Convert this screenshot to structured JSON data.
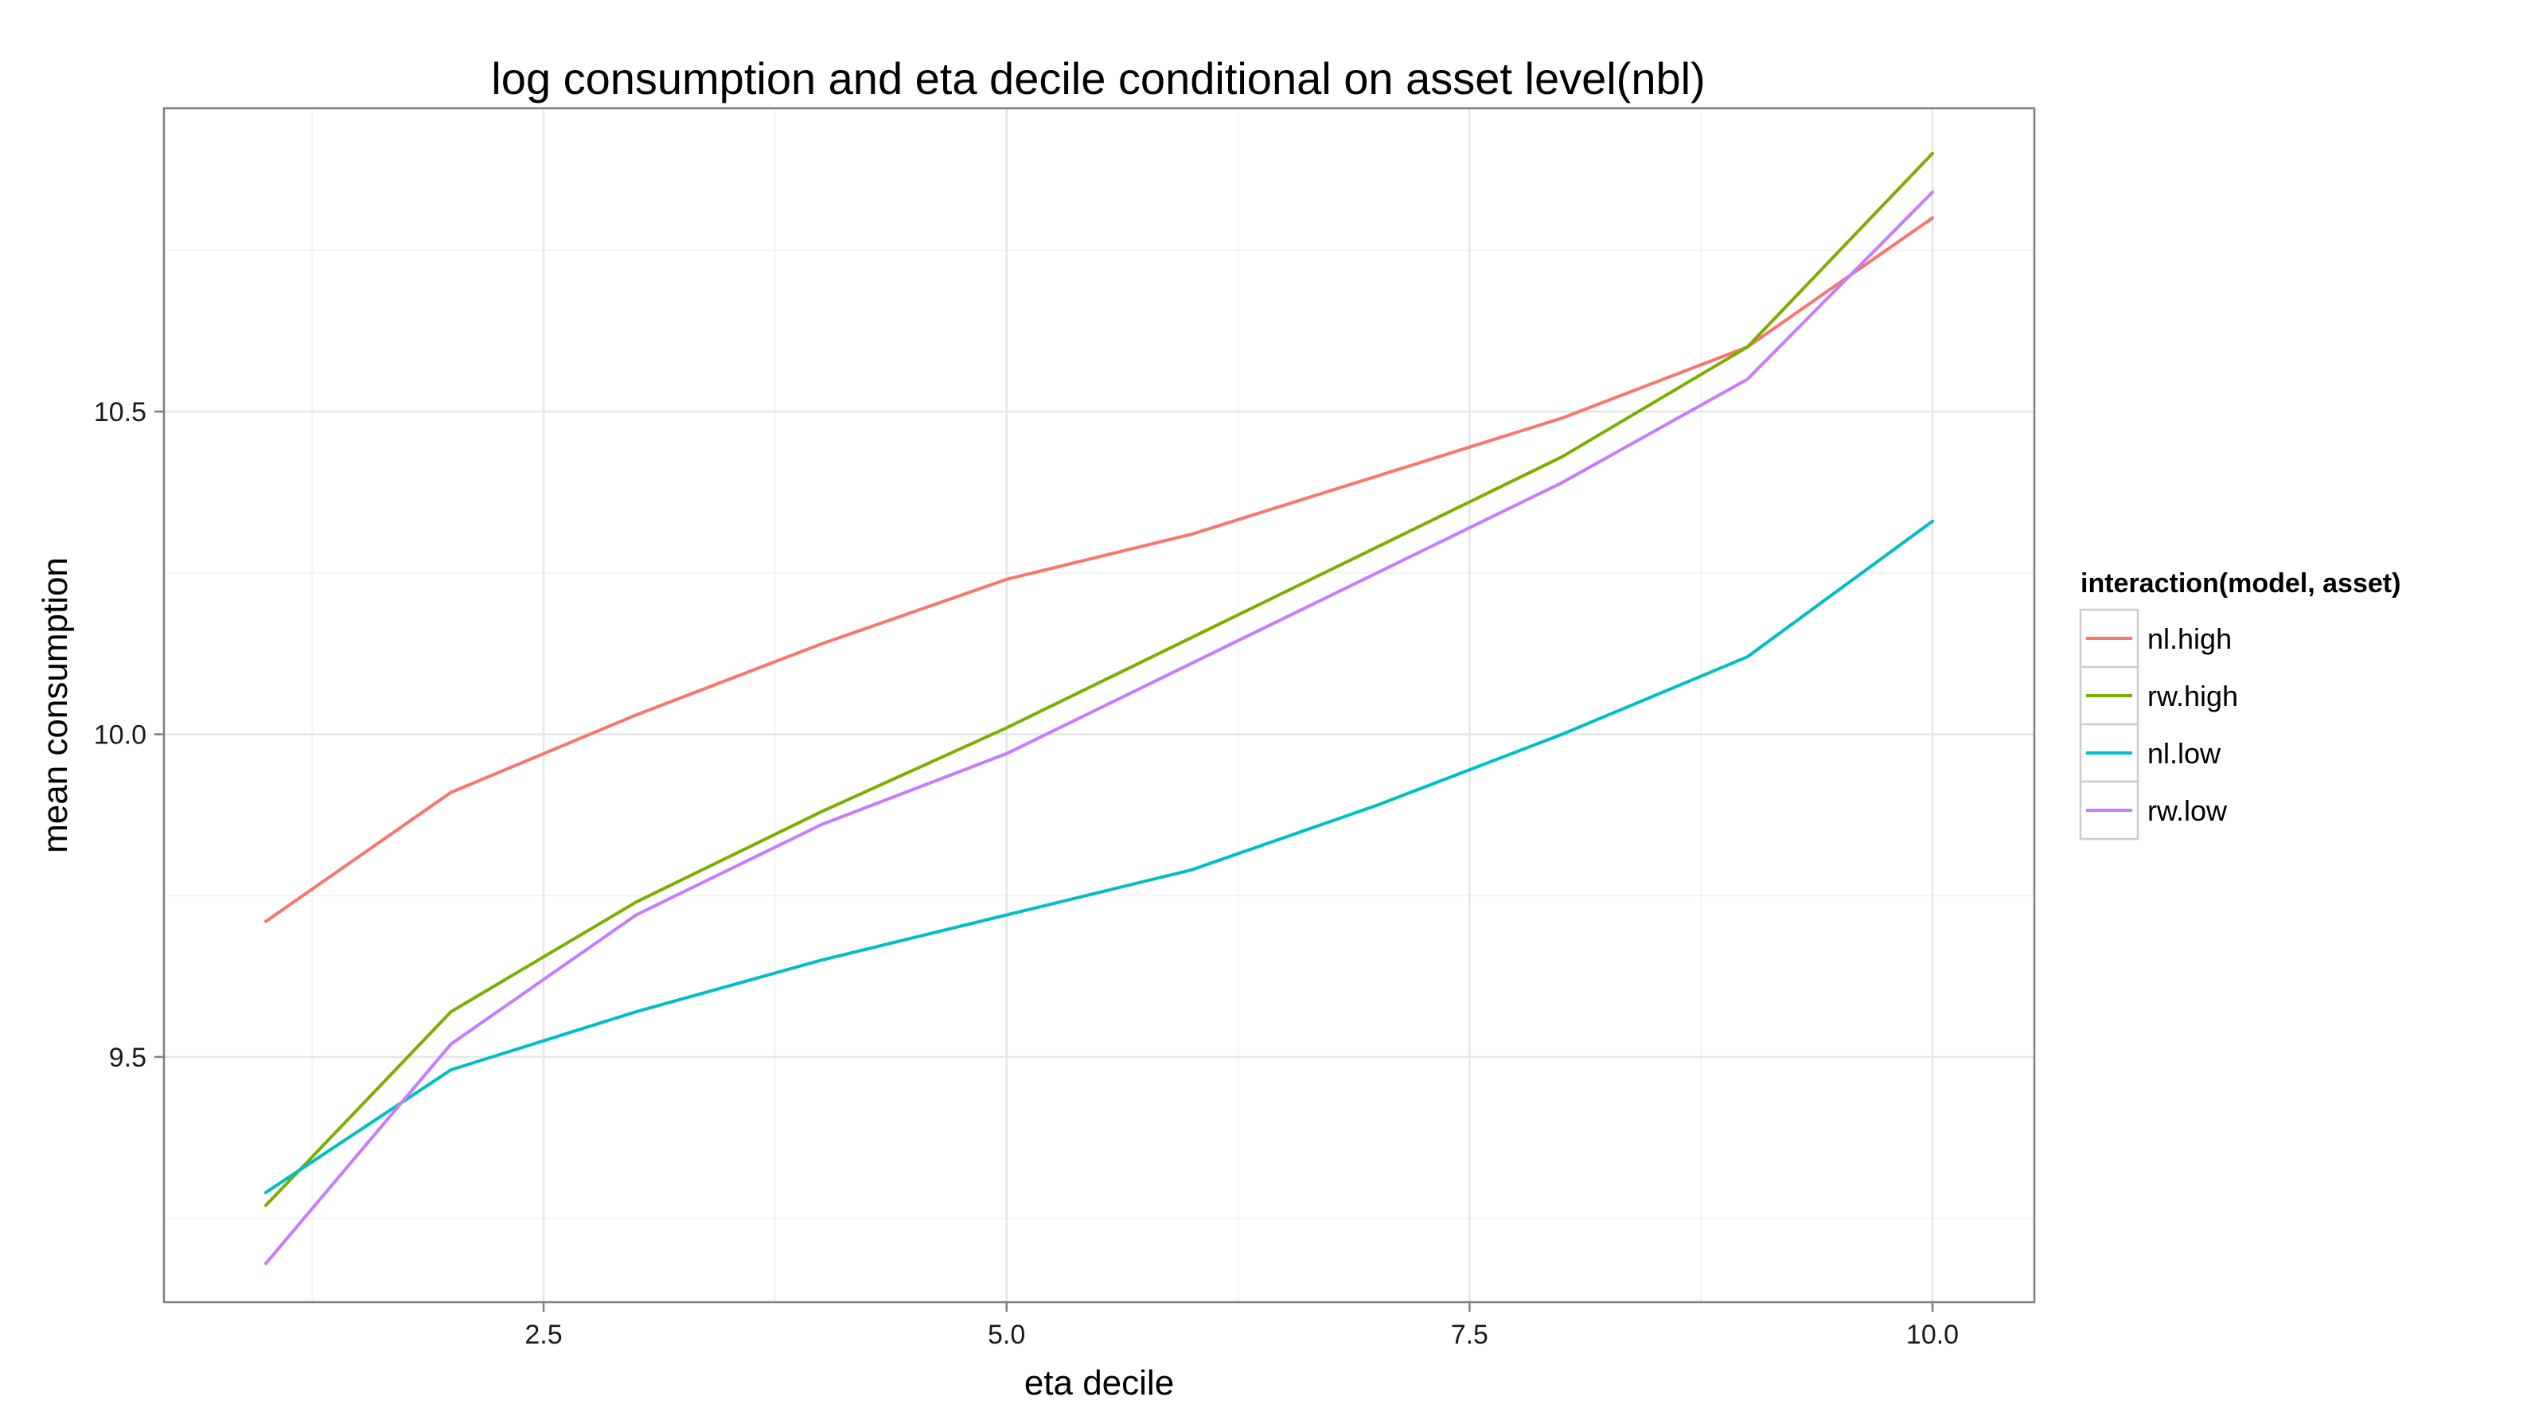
{
  "chart_data": {
    "type": "line",
    "title": "log consumption and eta decile conditional on asset level(nbl)",
    "xlabel": "eta decile",
    "ylabel": "mean consumption",
    "x": [
      1,
      2,
      3,
      4,
      5,
      6,
      7,
      8,
      9,
      10
    ],
    "xlim": [
      0.45,
      10.55
    ],
    "ylim": [
      9.12,
      10.97
    ],
    "xticks": [
      2.5,
      5.0,
      7.5,
      10.0
    ],
    "xtick_labels": [
      "2.5",
      "5.0",
      "7.5",
      "10.0"
    ],
    "yticks": [
      9.5,
      10.0,
      10.5
    ],
    "ytick_labels": [
      "9.5",
      "10.0",
      "10.5"
    ],
    "grid": true,
    "legend": {
      "title": "interaction(model, asset)",
      "placement": "right"
    },
    "series": [
      {
        "name": "nl.high",
        "color": "#F8766D",
        "values": [
          9.71,
          9.91,
          10.03,
          10.14,
          10.24,
          10.31,
          10.4,
          10.49,
          10.6,
          10.8
        ]
      },
      {
        "name": "rw.high",
        "color": "#7CAE00",
        "values": [
          9.27,
          9.57,
          9.74,
          9.88,
          10.01,
          10.15,
          10.29,
          10.43,
          10.6,
          10.9
        ]
      },
      {
        "name": "nl.low",
        "color": "#00BFC4",
        "values": [
          9.29,
          9.48,
          9.57,
          9.65,
          9.72,
          9.79,
          9.89,
          10.0,
          10.12,
          10.33
        ]
      },
      {
        "name": "rw.low",
        "color": "#C77CFF",
        "values": [
          9.18,
          9.52,
          9.72,
          9.86,
          9.97,
          10.11,
          10.25,
          10.39,
          10.55,
          10.84
        ]
      }
    ]
  }
}
